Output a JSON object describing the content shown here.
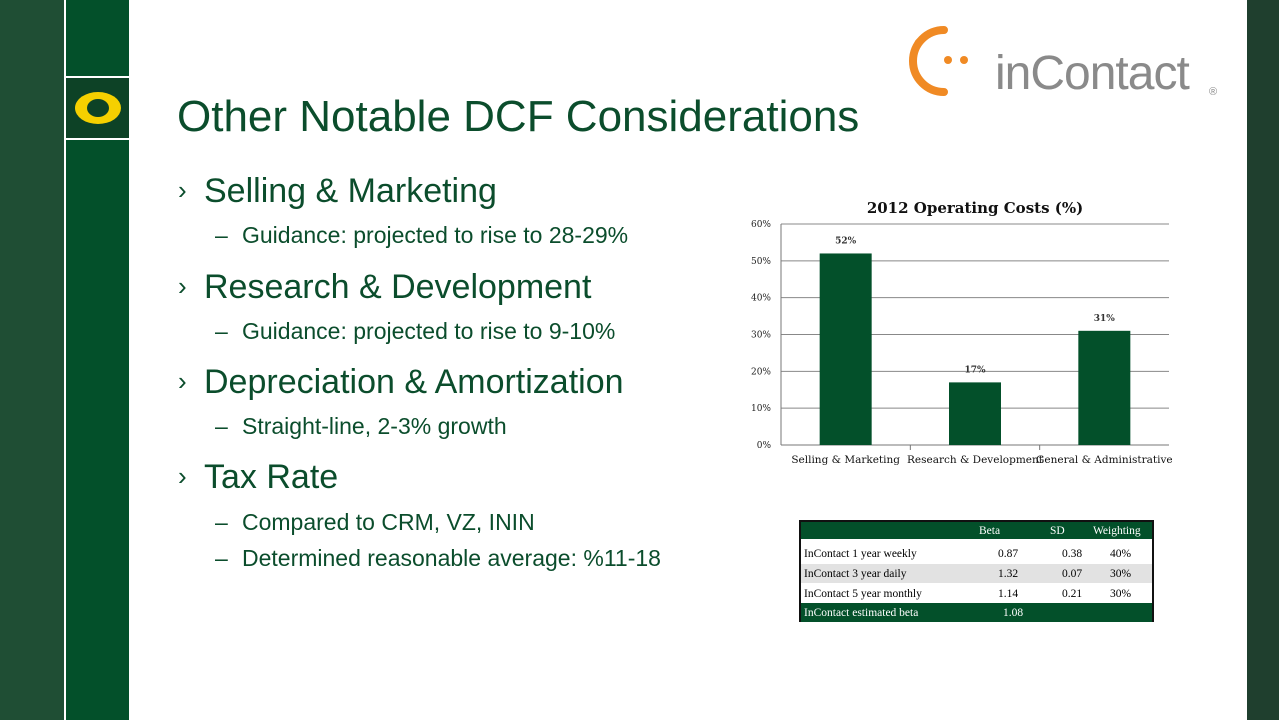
{
  "slide": {
    "title": "Other Notable DCF Considerations",
    "brand": {
      "wordmark": "inContact",
      "registered": "®",
      "mark_icon": "incontact-logo-icon",
      "side_logo": "oregon-o-logo"
    },
    "bullets": [
      {
        "heading": "Selling & Marketing",
        "sub": "Guidance: projected to rise to 28-29%"
      },
      {
        "heading": "Research & Development",
        "sub": "Guidance: projected to rise to 9-10%"
      },
      {
        "heading": "Depreciation & Amortization",
        "sub": "Straight-line, 2-3% growth"
      },
      {
        "heading": "Tax Rate",
        "subs": [
          "Compared to CRM, VZ, ININ",
          "Determined reasonable average: %11-18"
        ]
      }
    ],
    "bullet_glyph": "›",
    "sub_glyph": "–"
  },
  "chart_data": {
    "type": "bar",
    "title": "2012 Operating Costs (%)",
    "categories": [
      "Selling & Marketing",
      "Research & Development",
      "General & Administrative"
    ],
    "values": [
      52,
      17,
      31
    ],
    "data_labels": [
      "52%",
      "17%",
      "31%"
    ],
    "ylim": [
      0,
      60
    ],
    "yticks": [
      "0%",
      "10%",
      "20%",
      "30%",
      "40%",
      "50%",
      "60%"
    ],
    "grid": true,
    "bar_color": "#03502a"
  },
  "beta_table": {
    "headers": [
      "Beta",
      "SD",
      "Weighting"
    ],
    "rows": [
      {
        "label": "InContact 1 year weekly",
        "beta": "0.87",
        "sd": "0.38",
        "weight": "40%"
      },
      {
        "label": "InContact 3 year daily",
        "beta": "1.32",
        "sd": "0.07",
        "weight": "30%"
      },
      {
        "label": "InContact 5 year monthly",
        "beta": "1.14",
        "sd": "0.21",
        "weight": "30%"
      }
    ],
    "total": {
      "label": "InContact estimated beta",
      "beta": "1.08"
    }
  },
  "colors": {
    "brand_green": "#03502a",
    "text_green": "#0b4d2c",
    "brand_orange": "#f08a24",
    "logo_yellow": "#f5d000"
  }
}
